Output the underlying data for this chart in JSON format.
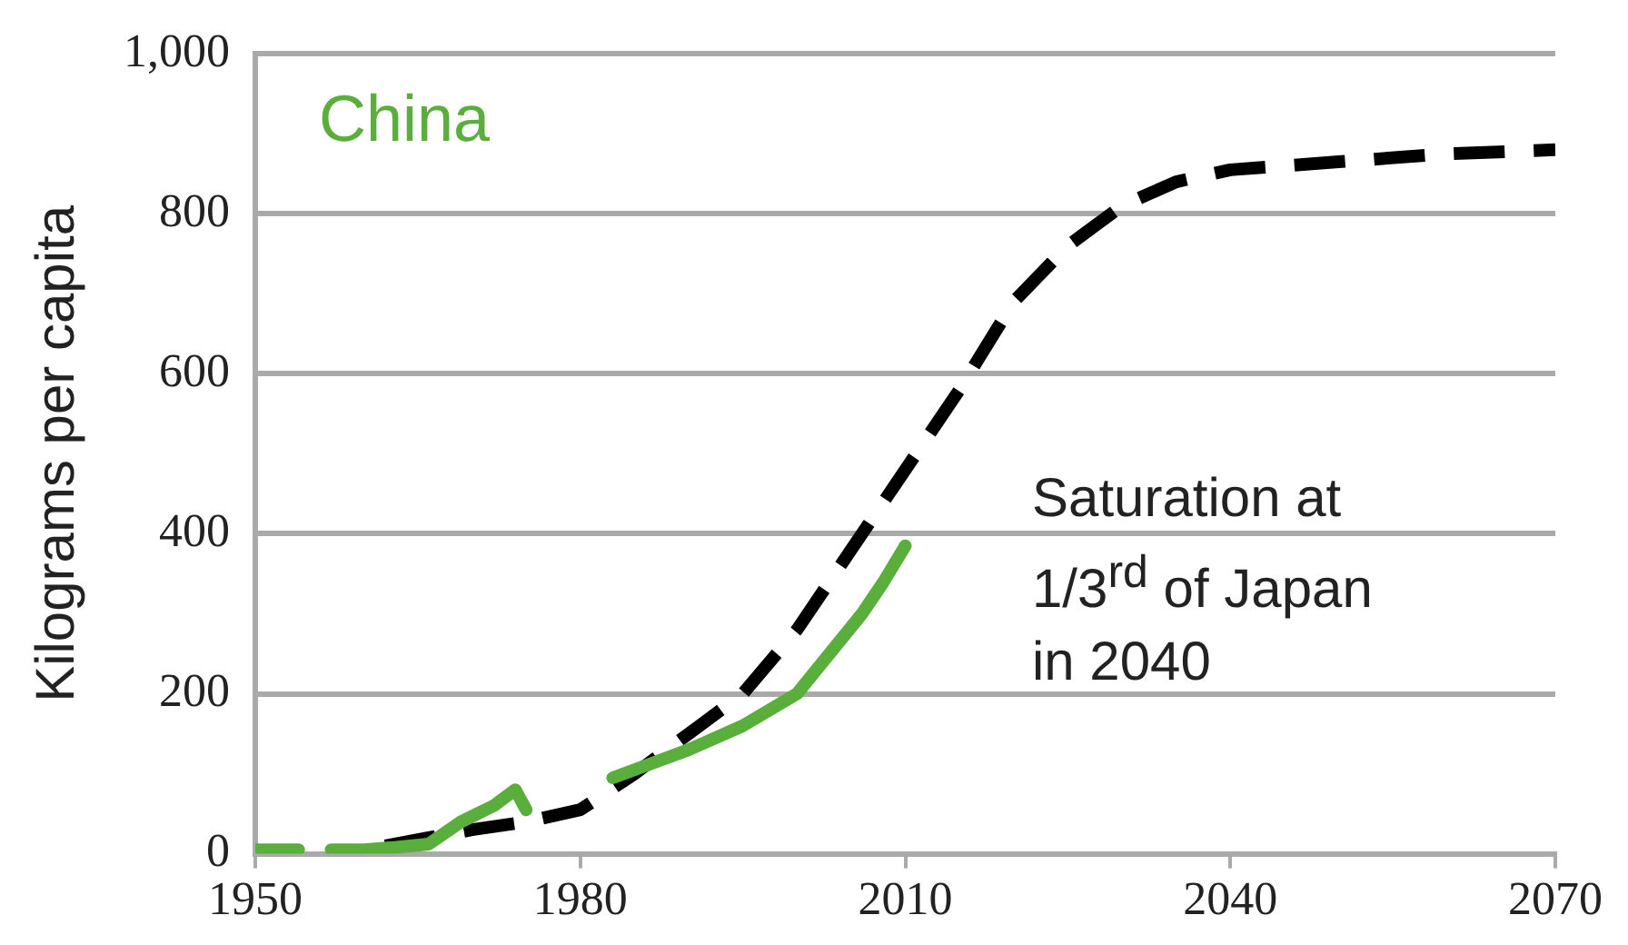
{
  "chart_data": {
    "type": "line",
    "ylabel": "Kilograms per capita",
    "xlim": [
      1950,
      2070
    ],
    "xticks": [
      1950,
      1980,
      2010,
      2040,
      2070
    ],
    "ylim": [
      0,
      1000
    ],
    "yticks": [
      0,
      200,
      400,
      600,
      800,
      {
        "value": 1000,
        "label": "1,000"
      }
    ],
    "grid": "y",
    "legend": false,
    "marker": "none",
    "series": [
      {
        "name": "China",
        "color": "#5aae3c",
        "line_style": "solid",
        "x": [
          1950,
          1954,
          1955,
          1957,
          1960,
          1963,
          1966,
          1969,
          1972,
          1974,
          1975,
          1977,
          1983,
          1986,
          1990,
          1995,
          2000,
          2003,
          2006,
          2008,
          2010
        ],
        "values": [
          5,
          5,
          null,
          5,
          5,
          8,
          12,
          40,
          60,
          80,
          55,
          null,
          95,
          110,
          130,
          160,
          200,
          250,
          300,
          340,
          385
        ]
      },
      {
        "color": "#000000",
        "line_style": "dashed",
        "x": [
          1962,
          1966,
          1970,
          1975,
          1980,
          1985,
          1990,
          1995,
          2000,
          2005,
          2010,
          2015,
          2020,
          2025,
          2030,
          2035,
          2040,
          2050,
          2060,
          2070
        ],
        "values": [
          10,
          20,
          30,
          40,
          55,
          100,
          150,
          200,
          280,
          380,
          480,
          580,
          690,
          760,
          810,
          840,
          855,
          865,
          875,
          880
        ]
      }
    ],
    "annotations": [
      "Saturation at\n1/3$^{rd}$ of Japan\nin 2040"
    ]
  }
}
